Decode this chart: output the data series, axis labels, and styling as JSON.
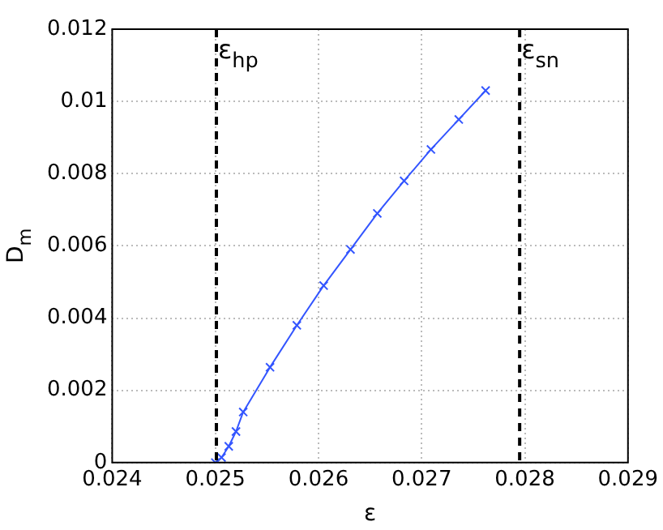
{
  "chart_data": {
    "type": "line",
    "xlabel": "ε",
    "ylabel": "D$_{m}$",
    "x": [
      0.025,
      0.02506,
      0.02513,
      0.0252,
      0.02527,
      0.02553,
      0.02579,
      0.02605,
      0.02631,
      0.02657,
      0.02683,
      0.02709,
      0.02736,
      0.02762
    ],
    "series": [
      {
        "color": "#3355ff",
        "values": [
          0,
          0.00014,
          0.00045,
          0.00086,
          0.0014,
          0.00264,
          0.0038,
          0.0049,
          0.0059,
          0.0069,
          0.0078,
          0.00867,
          0.0095,
          0.0103
        ]
      }
    ],
    "xlim": [
      0.024,
      0.029
    ],
    "xticks": [
      0.024,
      0.025,
      0.026,
      0.027,
      0.028,
      0.029
    ],
    "ylim": [
      0,
      0.012
    ],
    "yticks": [
      0,
      0.002,
      0.004,
      0.006,
      0.008,
      0.01,
      0.012
    ],
    "ref_lines": [
      {
        "axis": "x",
        "value": 0.02501,
        "label": "ε$_{hp}$",
        "color": "#000000",
        "line_style": "dashed"
      },
      {
        "axis": "x",
        "value": 0.02795,
        "label": "ε$_{sn}$",
        "color": "#000000",
        "line_style": "dashed"
      }
    ],
    "grid": true,
    "marker": "cross",
    "line_style": "solid",
    "legend": false
  }
}
